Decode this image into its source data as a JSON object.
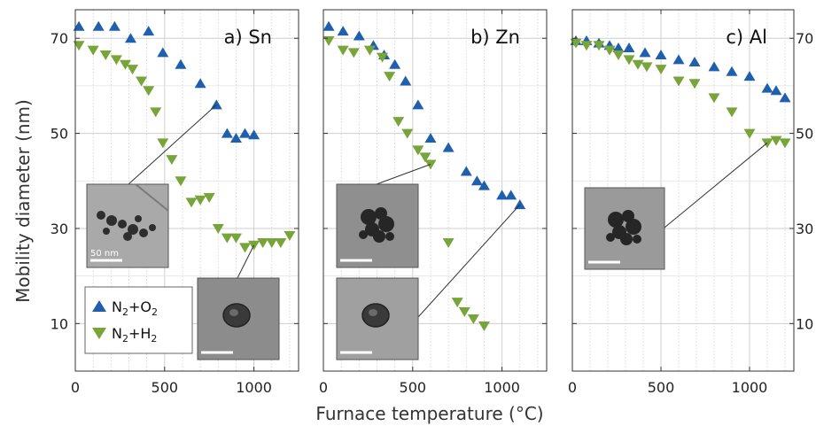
{
  "chart_data": {
    "type": "scatter",
    "xlabel": "Furnace temperature (°C)",
    "ylabel": "Mobility diameter (nm)",
    "ylim": [
      0,
      76
    ],
    "y_ticks": [
      10,
      30,
      50,
      70
    ],
    "y_minor_ticks": [
      20,
      40,
      60
    ],
    "x_ticks": [
      0,
      500,
      1000
    ],
    "grid": true,
    "legend": {
      "placement": "bottom-left of panel a",
      "entries": [
        {
          "series": "n2o2",
          "main": "N",
          "sub1": "2",
          "plus": "+O",
          "sub2": "2",
          "color": "#1f5fae",
          "marker": "triangle-up"
        },
        {
          "series": "n2h2",
          "main": "N",
          "sub1": "2",
          "plus": "+H",
          "sub2": "2",
          "color": "#77a53a",
          "marker": "triangle-down"
        }
      ]
    },
    "colors": {
      "n2o2": "#1f5fae",
      "n2h2": "#77a53a"
    },
    "panels": [
      {
        "label": "a) Sn",
        "xlim": [
          0,
          1250
        ],
        "series": [
          {
            "id": "n2o2",
            "x": [
              20,
              130,
              220,
              310,
              410,
              490,
              590,
              700,
              790,
              850,
              900,
              950,
              1000
            ],
            "y": [
              72.5,
              72.5,
              72.5,
              70,
              71.5,
              67,
              64.5,
              60.5,
              56,
              50,
              49,
              50,
              49.7
            ]
          },
          {
            "id": "n2h2",
            "x": [
              20,
              100,
              170,
              230,
              280,
              320,
              370,
              410,
              450,
              490,
              540,
              590,
              650,
              700,
              750,
              800,
              850,
              900,
              950,
              1000,
              1050,
              1100,
              1150,
              1200
            ],
            "y": [
              68.5,
              67.5,
              66.5,
              65.5,
              64.5,
              63.5,
              61,
              59,
              54.5,
              48,
              44.5,
              40,
              35.5,
              36,
              36.5,
              30,
              28,
              28,
              26,
              26.5,
              27,
              27,
              27,
              28.5
            ]
          }
        ],
        "insets": [
          {
            "kind": "network",
            "scale_text": "50 nm",
            "shade": "#a9a9a9"
          },
          {
            "kind": "particle",
            "scale_text": "",
            "shade": "#8c8c8c"
          }
        ]
      },
      {
        "label": "b) Zn",
        "xlim": [
          0,
          1250
        ],
        "series": [
          {
            "id": "n2o2",
            "x": [
              30,
              110,
              200,
              280,
              340,
              400,
              460,
              530,
              600,
              700,
              800,
              860,
              900,
              1000,
              1050,
              1100
            ],
            "y": [
              72.5,
              71.5,
              70.5,
              68.5,
              66.5,
              64.5,
              61,
              56,
              49,
              47,
              42,
              40,
              39,
              37,
              37,
              35
            ]
          },
          {
            "id": "n2h2",
            "x": [
              30,
              110,
              170,
              260,
              330,
              370,
              420,
              470,
              530,
              570,
              600,
              700,
              750,
              790,
              840,
              900
            ],
            "y": [
              69.5,
              67.5,
              67,
              67.5,
              66,
              62,
              52.5,
              50,
              46.5,
              45,
              43.5,
              27,
              14.5,
              12.5,
              11,
              9.5
            ]
          }
        ],
        "insets": [
          {
            "kind": "aggregate",
            "scale_text": "",
            "shade": "#8f8f8f"
          },
          {
            "kind": "particle",
            "scale_text": "",
            "shade": "#a0a0a0"
          }
        ]
      },
      {
        "label": "c) Al",
        "xlim": [
          0,
          1250
        ],
        "series": [
          {
            "id": "n2o2",
            "x": [
              20,
              80,
              150,
              210,
              260,
              320,
              410,
              500,
              600,
              690,
              800,
              900,
              1000,
              1100,
              1150,
              1200
            ],
            "y": [
              69.5,
              69.5,
              69,
              68.5,
              68,
              68,
              67,
              66.5,
              65.5,
              65,
              64,
              63,
              62,
              59.5,
              59,
              57.5
            ]
          },
          {
            "id": "n2h2",
            "x": [
              20,
              80,
              150,
              210,
              260,
              320,
              370,
              420,
              500,
              600,
              690,
              800,
              900,
              1000,
              1100,
              1150,
              1200
            ],
            "y": [
              69,
              68.5,
              68.5,
              67.5,
              66.5,
              65.5,
              64.5,
              64,
              63.5,
              61,
              60.5,
              57.5,
              54.5,
              50,
              48,
              48.5,
              48
            ]
          }
        ],
        "insets": [
          {
            "kind": "aggregate",
            "scale_text": "",
            "shade": "#9a9a9a"
          }
        ]
      }
    ]
  }
}
